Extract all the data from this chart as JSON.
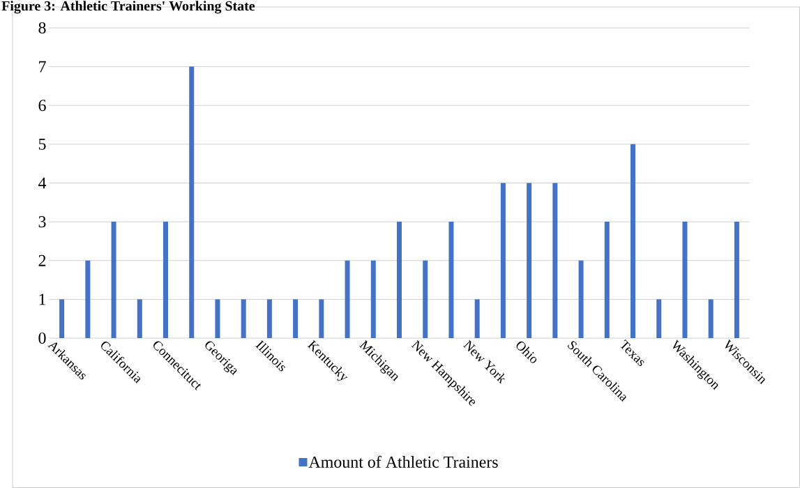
{
  "chart_data": {
    "type": "bar",
    "title": "Figure 3: Athletic Trainers' Working State",
    "categories": [
      "Arkansas",
      null,
      "California",
      null,
      "Connecituct",
      null,
      "Georiga",
      null,
      "Illinois",
      null,
      "Kentucky",
      null,
      "Michigan",
      null,
      "New Hampshire",
      null,
      "New York",
      null,
      "Ohio",
      null,
      "South Carolina",
      null,
      "Texas",
      null,
      "Washington",
      null,
      "Wisconsin"
    ],
    "series": [
      {
        "name": "Amount of Athletic Trainers",
        "color": "#4472c4",
        "values": [
          1,
          2,
          3,
          1,
          3,
          7,
          1,
          1,
          1,
          1,
          1,
          2,
          2,
          3,
          2,
          3,
          1,
          4,
          4,
          4,
          2,
          3,
          5,
          1,
          3,
          1,
          3
        ]
      }
    ],
    "ylim": [
      0,
      8
    ],
    "yticks": [
      0,
      1,
      2,
      3,
      4,
      5,
      6,
      7,
      8
    ],
    "grid": "y",
    "legend": "bottom"
  }
}
